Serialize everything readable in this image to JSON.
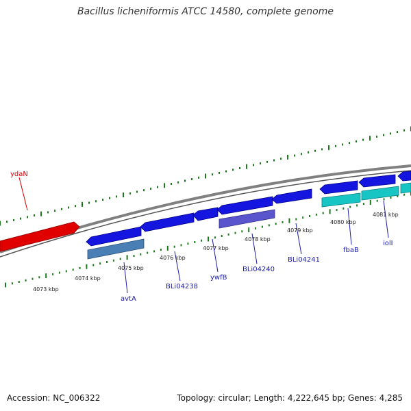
{
  "title": "Bacillus licheniformis ATCC 14580, complete genome",
  "footer": {
    "accession": "Accession: NC_006322",
    "summary": "Topology: circular; Length: 4,222,645 bp; Genes: 4,285"
  },
  "colors": {
    "backbone": "#808080",
    "tick": "#1a7a1a",
    "forward_gene": "#e00000",
    "cds": "#1515e0",
    "cds_light": "#5a55cc",
    "cds_steel": "#4a7fb5",
    "cds_cyan": "#17c5c5",
    "label_red": "#d40000",
    "label_blue": "#1a1aa6"
  },
  "ruler_labels": [
    "4073 kbp",
    "4074 kbp",
    "4075 kbp",
    "4076 kbp",
    "4077 kbp",
    "4078 kbp",
    "4079 kbp",
    "4080 kbp",
    "4081 kbp"
  ],
  "gene_labels": {
    "ydaN": "ydaN",
    "avtA": "avtA",
    "BLi04238": "BLi04238",
    "ywfB": "ywfB",
    "BLi04240": "BLi04240",
    "BLi04241": "BLi04241",
    "fbaB": "fbaB",
    "iolI": "iolI"
  }
}
